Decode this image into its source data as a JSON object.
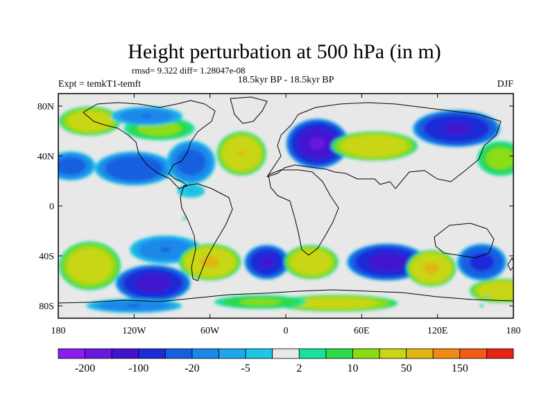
{
  "chart_data": {
    "type": "heatmap",
    "title": "Height perturbation at 500 hPa (in m)",
    "stats": "rmsd= 9.322 diff= 1.28047e-08",
    "left_label": "Expt = temkT1-temft",
    "center_label": "18.5kyr BP - 18.5kyr BP",
    "right_label": "DJF",
    "x_axis": {
      "ticks": [
        -180,
        -120,
        -60,
        0,
        60,
        120,
        180
      ],
      "tick_labels": [
        "180",
        "120W",
        "60W",
        "0",
        "60E",
        "120E",
        "180"
      ],
      "range": [
        -180,
        180
      ]
    },
    "y_axis": {
      "ticks": [
        80,
        40,
        0,
        -40,
        -80
      ],
      "tick_labels": [
        "80N",
        "40N",
        "0",
        "40S",
        "80S"
      ],
      "range": [
        -90,
        90
      ]
    },
    "colorbar": {
      "levels": [
        -200,
        -150,
        -100,
        -50,
        -20,
        -10,
        -5,
        -2,
        2,
        5,
        10,
        20,
        50,
        100,
        150,
        200
      ],
      "labels": [
        "-200",
        "-100",
        "-20",
        "-5",
        "2",
        "10",
        "50",
        "150"
      ],
      "colors": [
        "#8a1cf0",
        "#6a18e0",
        "#4214cc",
        "#1c2ad8",
        "#1660e0",
        "#1a88ea",
        "#1ea8ec",
        "#1cc6e4",
        "#e8e8e8",
        "#19e29a",
        "#2fd84a",
        "#8cdc14",
        "#c8d614",
        "#e0b612",
        "#f08a12",
        "#f25a16",
        "#e82212"
      ]
    },
    "anomalies": [
      {
        "lon": -120,
        "lat": 30,
        "value": -40,
        "rx": 32,
        "ry": 14
      },
      {
        "lon": -170,
        "lat": 32,
        "value": -30,
        "rx": 20,
        "ry": 12
      },
      {
        "lon": -155,
        "lat": 68,
        "value": 40,
        "rx": 25,
        "ry": 12
      },
      {
        "lon": -100,
        "lat": 62,
        "value": 15,
        "rx": 30,
        "ry": 10
      },
      {
        "lon": -75,
        "lat": 35,
        "value": -30,
        "rx": 20,
        "ry": 18
      },
      {
        "lon": -35,
        "lat": 42,
        "value": 50,
        "rx": 20,
        "ry": 18
      },
      {
        "lon": 25,
        "lat": 50,
        "value": -160,
        "rx": 25,
        "ry": 20
      },
      {
        "lon": 70,
        "lat": 48,
        "value": 45,
        "rx": 35,
        "ry": 12
      },
      {
        "lon": 135,
        "lat": 62,
        "value": -110,
        "rx": 35,
        "ry": 15
      },
      {
        "lon": 170,
        "lat": 38,
        "value": 15,
        "rx": 20,
        "ry": 15
      },
      {
        "lon": -110,
        "lat": 72,
        "value": -20,
        "rx": 30,
        "ry": 8
      },
      {
        "lon": -75,
        "lat": 12,
        "value": -5,
        "rx": 14,
        "ry": 7
      },
      {
        "lon": -95,
        "lat": -35,
        "value": -20,
        "rx": 30,
        "ry": 12
      },
      {
        "lon": -155,
        "lat": -48,
        "value": 40,
        "rx": 25,
        "ry": 20
      },
      {
        "lon": -105,
        "lat": -62,
        "value": -130,
        "rx": 30,
        "ry": 15
      },
      {
        "lon": -60,
        "lat": -45,
        "value": 55,
        "rx": 25,
        "ry": 15
      },
      {
        "lon": -15,
        "lat": -45,
        "value": -110,
        "rx": 18,
        "ry": 14
      },
      {
        "lon": 20,
        "lat": -45,
        "value": 45,
        "rx": 22,
        "ry": 14
      },
      {
        "lon": 80,
        "lat": -45,
        "value": -130,
        "rx": 32,
        "ry": 15
      },
      {
        "lon": 115,
        "lat": -50,
        "value": 55,
        "rx": 20,
        "ry": 15
      },
      {
        "lon": 155,
        "lat": -45,
        "value": -65,
        "rx": 20,
        "ry": 15
      },
      {
        "lon": 170,
        "lat": -68,
        "value": 45,
        "rx": 25,
        "ry": 10
      },
      {
        "lon": 40,
        "lat": -78,
        "value": 35,
        "rx": 50,
        "ry": 7
      },
      {
        "lon": -20,
        "lat": -77,
        "value": 12,
        "rx": 40,
        "ry": 6
      },
      {
        "lon": -120,
        "lat": -80,
        "value": -20,
        "rx": 40,
        "ry": 6
      }
    ]
  }
}
